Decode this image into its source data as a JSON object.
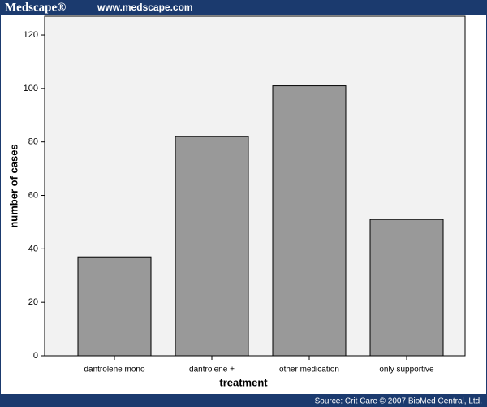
{
  "header": {
    "brand": "Medscape®",
    "url": "www.medscape.com"
  },
  "footer": {
    "source": "Source: Crit Care © 2007 BioMed Central, Ltd."
  },
  "chart_data": {
    "type": "bar",
    "x_label": "treatment",
    "y_label": "number of cases",
    "categories": [
      "dantrolene mono",
      "dantrolene +",
      "other medication",
      "only supportive"
    ],
    "values": [
      37,
      82,
      101,
      51
    ],
    "color": "#999999",
    "ylim": [
      0,
      127
    ],
    "yticks": [
      0,
      20,
      40,
      60,
      80,
      100,
      120
    ]
  }
}
